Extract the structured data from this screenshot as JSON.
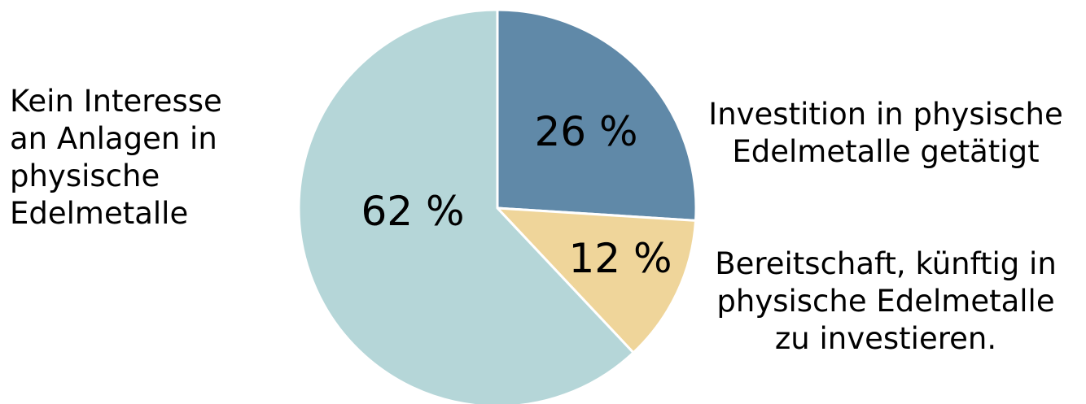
{
  "chart_data": {
    "type": "pie",
    "title": "",
    "slices": [
      {
        "label_lines": [
          "Investition in physische",
          "Edelmetalle getätigt"
        ],
        "value": 26,
        "value_text": "26 %",
        "color": "#6089a8"
      },
      {
        "label_lines": [
          "Bereitschaft, künftig in",
          "physische Edelmetalle",
          "zu investieren."
        ],
        "value": 12,
        "value_text": "12 %",
        "color": "#efd59a"
      },
      {
        "label_lines": [
          "Kein Interesse",
          "an Anlagen in",
          "physische",
          "Edelmetalle"
        ],
        "value": 62,
        "value_text": "62 %",
        "color": "#b5d6d8"
      }
    ],
    "legend": "none",
    "start": "top",
    "direction": "clockwise"
  }
}
